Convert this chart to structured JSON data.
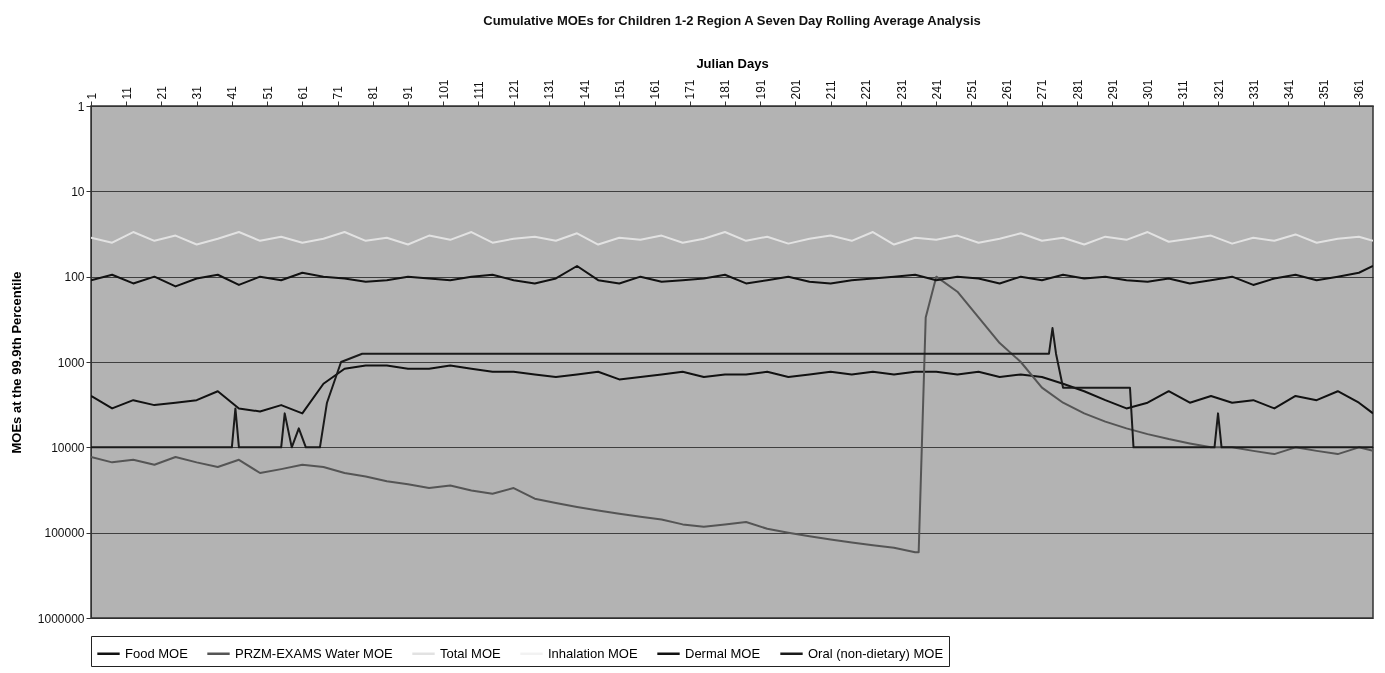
{
  "chart_data": {
    "type": "line",
    "title": "Cumulative MOEs for Children 1-2 Region A Seven Day Rolling Average Analysis",
    "xlabel": "Julian Days",
    "ylabel": "MOEs at the 99.9th Percentile",
    "x": [
      1,
      7,
      13,
      19,
      25,
      31,
      37,
      43,
      49,
      55,
      61,
      67,
      73,
      79,
      85,
      91,
      97,
      103,
      109,
      115,
      121,
      127,
      133,
      139,
      145,
      151,
      157,
      163,
      169,
      175,
      181,
      187,
      193,
      199,
      205,
      211,
      217,
      223,
      229,
      235,
      241,
      247,
      253,
      259,
      265,
      271,
      277,
      283,
      289,
      295,
      301,
      307,
      313,
      319,
      325,
      331,
      337,
      343,
      349,
      355,
      361,
      365
    ],
    "series": [
      {
        "name": "Food MOE",
        "color": "#111111",
        "values": [
          2500,
          3500,
          2800,
          3200,
          3000,
          2800,
          2200,
          3500,
          3800,
          3200,
          4000,
          1800,
          1200,
          1100,
          1100,
          1200,
          1200,
          1100,
          1200,
          1300,
          1300,
          1400,
          1500,
          1400,
          1300,
          1600,
          1500,
          1400,
          1300,
          1500,
          1400,
          1400,
          1300,
          1500,
          1400,
          1300,
          1400,
          1300,
          1400,
          1300,
          1300,
          1400,
          1300,
          1500,
          1400,
          1500,
          1800,
          2200,
          2800,
          3500,
          3000,
          2200,
          3000,
          2500,
          3000,
          2800,
          3500,
          2500,
          2800,
          2200,
          3000,
          4000
        ]
      },
      {
        "name": "PRZM-EXAMS Water MOE",
        "color": "#555555",
        "x": [
          1,
          7,
          13,
          19,
          25,
          31,
          37,
          43,
          49,
          55,
          61,
          67,
          73,
          79,
          85,
          91,
          97,
          103,
          109,
          115,
          121,
          127,
          133,
          139,
          145,
          151,
          157,
          163,
          169,
          175,
          181,
          187,
          193,
          199,
          205,
          211,
          217,
          223,
          229,
          235,
          236,
          238,
          241,
          247,
          253,
          259,
          265,
          271,
          277,
          283,
          289,
          295,
          301,
          307,
          313,
          319,
          325,
          331,
          337,
          343,
          349,
          355,
          361,
          365
        ],
        "values": [
          13000,
          15000,
          14000,
          16000,
          13000,
          15000,
          17000,
          14000,
          20000,
          18000,
          16000,
          17000,
          20000,
          22000,
          25000,
          27000,
          30000,
          28000,
          32000,
          35000,
          30000,
          40000,
          45000,
          50000,
          55000,
          60000,
          65000,
          70000,
          80000,
          85000,
          80000,
          75000,
          90000,
          100000,
          110000,
          120000,
          130000,
          140000,
          150000,
          170000,
          170000,
          300,
          100,
          150,
          300,
          600,
          1000,
          2000,
          3000,
          4000,
          5000,
          6000,
          7000,
          8000,
          9000,
          10000,
          10000,
          11000,
          12000,
          10000,
          11000,
          12000,
          10000,
          11000
        ]
      },
      {
        "name": "Total MOE",
        "color": "#e2e2e2",
        "values": [
          35,
          40,
          30,
          38,
          33,
          42,
          36,
          30,
          38,
          34,
          40,
          36,
          30,
          38,
          35,
          42,
          33,
          37,
          30,
          40,
          36,
          34,
          38,
          31,
          42,
          35,
          37,
          33,
          40,
          36,
          30,
          38,
          34,
          41,
          36,
          33,
          38,
          30,
          42,
          35,
          37,
          33,
          40,
          36,
          31,
          38,
          35,
          42,
          34,
          37,
          30,
          39,
          36,
          33,
          41,
          35,
          38,
          32,
          40,
          36,
          34,
          38
        ]
      },
      {
        "name": "Inhalation MOE",
        "color": "#f2f2f2",
        "values": [
          null,
          null,
          null,
          null,
          null,
          null,
          null,
          null,
          null,
          null,
          null,
          null,
          null,
          null,
          null,
          null,
          null,
          null,
          null,
          null,
          null,
          null,
          null,
          null,
          null,
          null,
          null,
          null,
          null,
          null,
          null,
          null,
          null,
          null,
          null,
          null,
          null,
          null,
          null,
          null,
          null,
          null,
          null,
          null,
          null,
          null,
          null,
          null,
          null,
          null,
          null,
          null,
          null,
          null,
          null,
          null,
          null,
          null,
          null,
          null,
          null,
          null
        ]
      },
      {
        "name": "Dermal MOE",
        "color": "#111111",
        "values": [
          110,
          95,
          120,
          100,
          130,
          105,
          95,
          125,
          100,
          110,
          90,
          100,
          105,
          115,
          110,
          100,
          105,
          110,
          100,
          95,
          110,
          120,
          105,
          75,
          110,
          120,
          100,
          115,
          110,
          105,
          95,
          120,
          110,
          100,
          115,
          120,
          110,
          105,
          100,
          95,
          110,
          100,
          105,
          120,
          100,
          110,
          95,
          105,
          100,
          110,
          115,
          105,
          120,
          110,
          100,
          125,
          105,
          95,
          110,
          100,
          90,
          75
        ]
      },
      {
        "name": "Oral (non-dietary) MOE",
        "color": "#1a1a1a",
        "x": [
          1,
          41,
          42,
          43,
          55,
          56,
          58,
          60,
          62,
          64,
          66,
          68,
          72,
          78,
          273,
          274,
          275,
          277,
          296,
          297,
          320,
          321,
          322,
          365
        ],
        "values": [
          10000,
          10000,
          3500,
          10000,
          10000,
          4000,
          10000,
          6000,
          10000,
          10000,
          10000,
          3000,
          1000,
          800,
          800,
          400,
          800,
          2000,
          2000,
          10000,
          10000,
          4000,
          10000,
          10000
        ]
      }
    ],
    "xlim": [
      1,
      365
    ],
    "xticks": [
      1,
      11,
      21,
      31,
      41,
      51,
      61,
      71,
      81,
      91,
      101,
      111,
      121,
      131,
      141,
      151,
      161,
      171,
      181,
      191,
      201,
      211,
      221,
      231,
      241,
      251,
      261,
      271,
      281,
      291,
      301,
      311,
      321,
      331,
      341,
      351,
      361
    ],
    "ylim": [
      1000000,
      1
    ],
    "yticks": [
      1,
      10,
      100,
      1000,
      10000,
      100000,
      1000000
    ],
    "log": true,
    "grid": "y",
    "legend": "bottom"
  }
}
